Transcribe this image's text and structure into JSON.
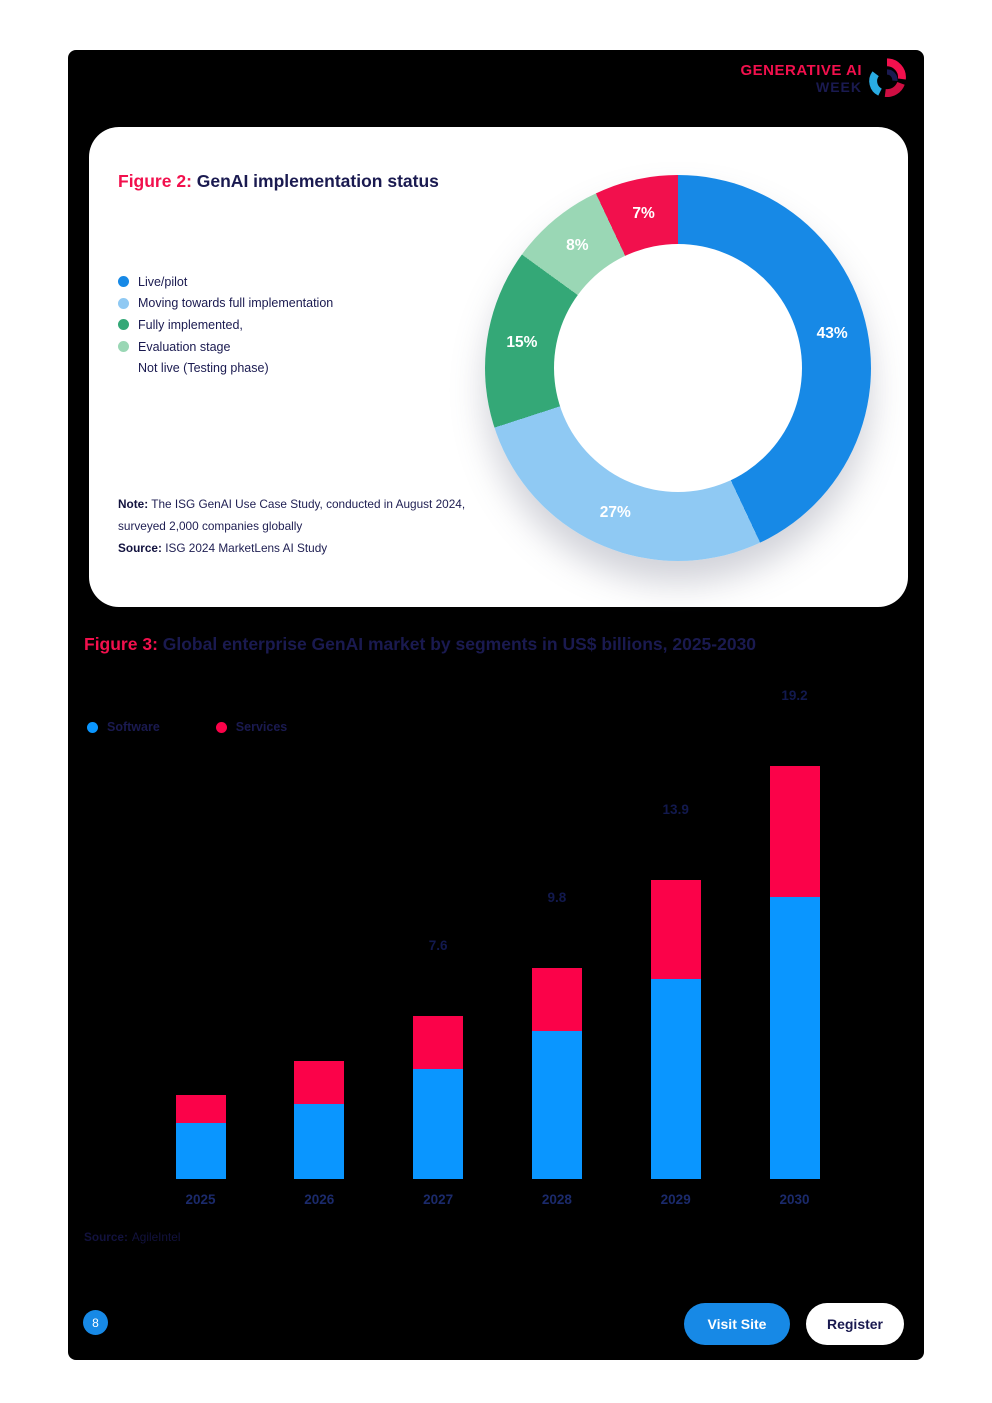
{
  "logo": {
    "line1": "GENERATIVE AI",
    "line2": "WEEK"
  },
  "figure2": {
    "title_prefix": "Figure 2:",
    "title_rest": " GenAI implementation status",
    "legend": [
      {
        "label": "Live/pilot",
        "color": "#1789E6"
      },
      {
        "label": "Moving towards full implementation",
        "color": "#8FC9F3"
      },
      {
        "label": "Fully implemented,",
        "color": "#34A877"
      },
      {
        "label": "Evaluation stage",
        "color": "#9AD7B5"
      },
      {
        "label": "Not live (Testing phase)",
        "color": ""
      }
    ],
    "note_label": "Note:",
    "note_line1": "The ISG GenAI Use Case Study, conducted in August 2024,",
    "note_line2": "surveyed 2,000 companies globally",
    "source_label": "Source:",
    "source_text": "ISG 2024 MarketLens AI Study"
  },
  "figure3": {
    "title_prefix": "Figure 3:",
    "title_rest": " Global enterprise GenAI market by segments in US$ billions, 2025-2030",
    "legend": [
      {
        "label": "Software",
        "color": "#0A96FF"
      },
      {
        "label": "Services",
        "color": "#FB0249"
      }
    ],
    "source_label": "Source:",
    "source_text": "AgileIntel"
  },
  "footer": {
    "page_number": "8",
    "visit_site_label": "Visit Site",
    "register_label": "Register"
  },
  "chart_data": [
    {
      "type": "pie",
      "subtype": "donut",
      "title": "Figure 2: GenAI implementation status",
      "labels": [
        "Live/pilot",
        "Moving towards full implementation",
        "Fully implemented,",
        "Evaluation stage",
        "Not live (Testing phase)"
      ],
      "values": [
        43,
        27,
        15,
        8,
        7
      ],
      "value_labels": [
        "43%",
        "27%",
        "15%",
        "8%",
        "7%"
      ],
      "unit": "%",
      "colors": [
        "#1789E6",
        "#8FC9F3",
        "#34A877",
        "#9AD7B5",
        "#F2104D"
      ],
      "start_angle_deg": 0,
      "direction": "clockwise",
      "legend_position": "left",
      "note": "The ISG GenAI Use Case Study, conducted in August 2024, surveyed 2,000 companies globally",
      "source": "ISG 2024 MarketLens AI Study"
    },
    {
      "type": "bar",
      "subtype": "stacked",
      "title": "Figure 3: Global enterprise GenAI market by segments in US$ billions, 2025-2030",
      "categories": [
        "2025",
        "2026",
        "2027",
        "2028",
        "2029",
        "2030"
      ],
      "series": [
        {
          "name": "Software",
          "color": "#0A96FF",
          "values": [
            2.6,
            3.5,
            5.1,
            6.9,
            9.3,
            13.1
          ]
        },
        {
          "name": "Services",
          "color": "#FB0249",
          "values": [
            1.3,
            2.0,
            2.5,
            2.9,
            4.6,
            6.1
          ]
        }
      ],
      "totals": [
        3.9,
        5.5,
        7.6,
        9.8,
        13.9,
        19.2
      ],
      "visible_total_labels": [
        "",
        "",
        "7.6",
        "9.8",
        "13.9",
        "19.2"
      ],
      "ylabel": "US$ billions",
      "ylim": [
        0,
        19.2
      ],
      "grid": false,
      "legend_position": "top-left",
      "source": "AgileIntel"
    }
  ]
}
